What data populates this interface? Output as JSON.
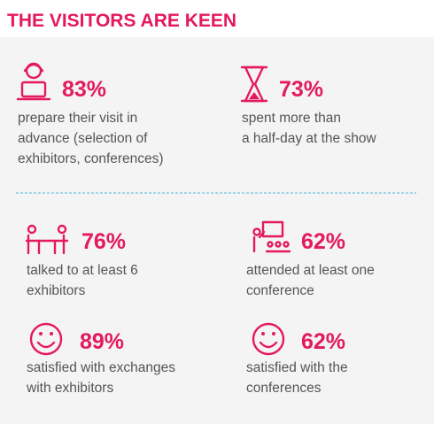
{
  "header": {
    "title": "THE VISITORS ARE KEEN"
  },
  "stats": [
    {
      "value": "83%",
      "lines": [
        "prepare their visit in",
        "advance (selection of",
        "exhibitors, conferences)"
      ]
    },
    {
      "value": "73%",
      "lines": [
        "spent more than",
        "a half-day at the show"
      ]
    },
    {
      "value": "76%",
      "lines": [
        "talked to at least 6",
        "exhibitors"
      ]
    },
    {
      "value": "62%",
      "lines": [
        "attended at least one",
        "conference"
      ]
    },
    {
      "value": "89%",
      "lines": [
        "satisfied with exchanges",
        "with exhibitors"
      ]
    },
    {
      "value": "62%",
      "lines": [
        "satisfied with the",
        "conferences"
      ]
    }
  ]
}
